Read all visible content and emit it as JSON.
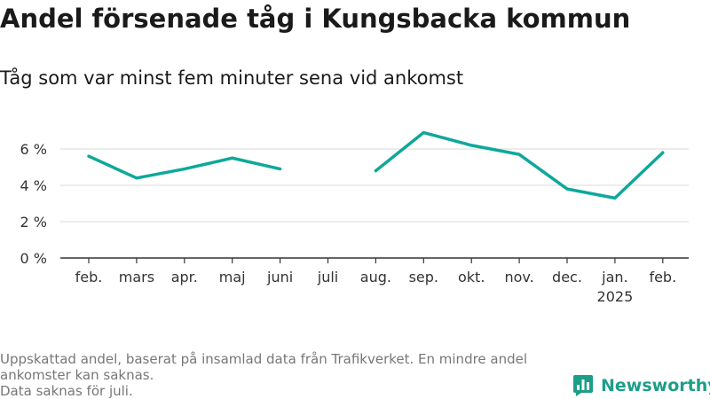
{
  "title": "Andel försenade tåg i Kungsbacka kommun",
  "subtitle": "Tåg som var minst fem minuter sena vid ankomst",
  "notes": [
    "Uppskattad andel, baserat på insamlad data från Trafikverket. En mindre andel ankomster kan saknas.",
    "Data saknas för juli."
  ],
  "brand": {
    "name": "Newsworthy"
  },
  "colors": {
    "line": "#0ea89a",
    "grid": "#d9d9d9",
    "axis": "#333333",
    "brand": "#1d9e88"
  },
  "chart_data": {
    "type": "line",
    "title": "Andel försenade tåg i Kungsbacka kommun",
    "subtitle": "Tåg som var minst fem minuter sena vid ankomst",
    "categories": [
      "feb.",
      "mars",
      "apr.",
      "maj",
      "juni",
      "juli",
      "aug.",
      "sep.",
      "okt.",
      "nov.",
      "dec.",
      "jan.",
      "feb."
    ],
    "category_sublabels": [
      "",
      "",
      "",
      "",
      "",
      "",
      "",
      "",
      "",
      "",
      "",
      "2025",
      ""
    ],
    "series": [
      {
        "values": [
          5.6,
          4.4,
          4.9,
          5.5,
          4.9,
          null,
          4.8,
          6.9,
          6.2,
          5.7,
          3.8,
          3.3,
          5.8
        ]
      }
    ],
    "ylim": [
      0,
      7
    ],
    "yticks": [
      0,
      2,
      4,
      6
    ],
    "ytick_labels": [
      "0 %",
      "2 %",
      "4 %",
      "6 %"
    ],
    "grid": true,
    "legend": "none"
  }
}
